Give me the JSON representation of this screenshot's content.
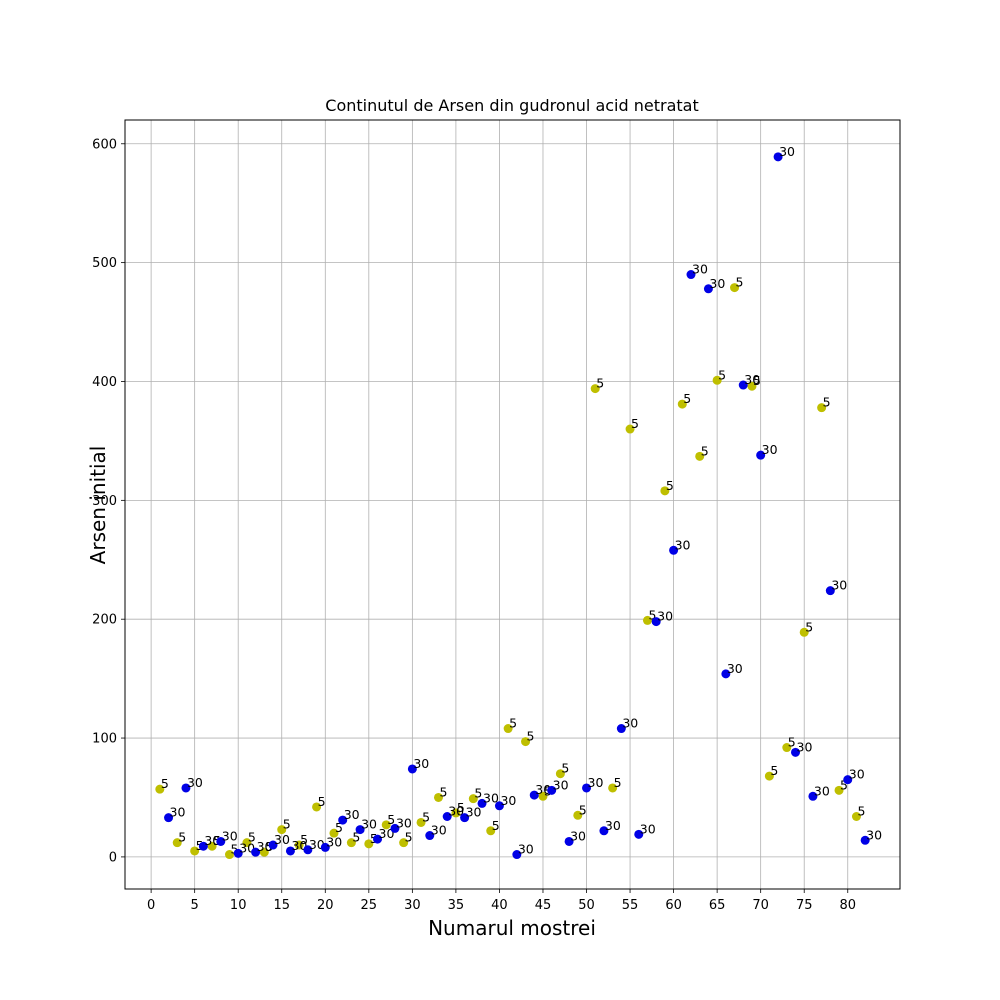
{
  "chart_data": {
    "type": "scatter",
    "title": "Continutul de Arsen din gudronul acid netratat",
    "xlabel": "Numarul mostrei",
    "ylabel": "Arsen initial",
    "xlim": [
      -3,
      86
    ],
    "ylim": [
      -27,
      620
    ],
    "xticks": [
      0,
      5,
      10,
      15,
      20,
      25,
      30,
      35,
      40,
      45,
      50,
      55,
      60,
      65,
      70,
      75,
      80
    ],
    "yticks": [
      0,
      100,
      200,
      300,
      400,
      500,
      600
    ],
    "grid": true,
    "series": [
      {
        "color": "#bfbf00",
        "points": [
          {
            "x": 1,
            "y": 57,
            "label": "5"
          },
          {
            "x": 3,
            "y": 12,
            "label": "5"
          },
          {
            "x": 5,
            "y": 5,
            "label": "5"
          },
          {
            "x": 7,
            "y": 9,
            "label": "5"
          },
          {
            "x": 9,
            "y": 2,
            "label": "5"
          },
          {
            "x": 11,
            "y": 12,
            "label": "5"
          },
          {
            "x": 13,
            "y": 4,
            "label": "5"
          },
          {
            "x": 15,
            "y": 23,
            "label": "5"
          },
          {
            "x": 17,
            "y": 10,
            "label": "5"
          },
          {
            "x": 19,
            "y": 42,
            "label": "5"
          },
          {
            "x": 21,
            "y": 20,
            "label": "5"
          },
          {
            "x": 23,
            "y": 12,
            "label": "5"
          },
          {
            "x": 25,
            "y": 11,
            "label": "5"
          },
          {
            "x": 27,
            "y": 27,
            "label": "5"
          },
          {
            "x": 29,
            "y": 12,
            "label": "5"
          },
          {
            "x": 31,
            "y": 29,
            "label": "5"
          },
          {
            "x": 33,
            "y": 50,
            "label": "5"
          },
          {
            "x": 35,
            "y": 37,
            "label": "5"
          },
          {
            "x": 37,
            "y": 49,
            "label": "5"
          },
          {
            "x": 39,
            "y": 22,
            "label": "5"
          },
          {
            "x": 41,
            "y": 108,
            "label": "5"
          },
          {
            "x": 43,
            "y": 97,
            "label": "5"
          },
          {
            "x": 45,
            "y": 51,
            "label": "5"
          },
          {
            "x": 47,
            "y": 70,
            "label": "5"
          },
          {
            "x": 49,
            "y": 35,
            "label": "5"
          },
          {
            "x": 51,
            "y": 394,
            "label": "5"
          },
          {
            "x": 53,
            "y": 58,
            "label": "5"
          },
          {
            "x": 55,
            "y": 360,
            "label": "5"
          },
          {
            "x": 57,
            "y": 199,
            "label": "5"
          },
          {
            "x": 59,
            "y": 308,
            "label": "5"
          },
          {
            "x": 61,
            "y": 381,
            "label": "5"
          },
          {
            "x": 63,
            "y": 337,
            "label": "5"
          },
          {
            "x": 65,
            "y": 401,
            "label": "5"
          },
          {
            "x": 67,
            "y": 479,
            "label": "5"
          },
          {
            "x": 69,
            "y": 396,
            "label": "5"
          },
          {
            "x": 71,
            "y": 68,
            "label": "5"
          },
          {
            "x": 73,
            "y": 92,
            "label": "5"
          },
          {
            "x": 75,
            "y": 189,
            "label": "5"
          },
          {
            "x": 77,
            "y": 378,
            "label": "5"
          },
          {
            "x": 79,
            "y": 56,
            "label": "5"
          },
          {
            "x": 81,
            "y": 34,
            "label": "5"
          }
        ]
      },
      {
        "color": "#0000e6",
        "points": [
          {
            "x": 2,
            "y": 33,
            "label": "30"
          },
          {
            "x": 4,
            "y": 58,
            "label": "30"
          },
          {
            "x": 6,
            "y": 9,
            "label": "30"
          },
          {
            "x": 8,
            "y": 13,
            "label": "30"
          },
          {
            "x": 10,
            "y": 3,
            "label": "30"
          },
          {
            "x": 12,
            "y": 4,
            "label": "30"
          },
          {
            "x": 14,
            "y": 10,
            "label": "30"
          },
          {
            "x": 16,
            "y": 5,
            "label": "30"
          },
          {
            "x": 18,
            "y": 6,
            "label": "30"
          },
          {
            "x": 20,
            "y": 8,
            "label": "30"
          },
          {
            "x": 22,
            "y": 31,
            "label": "30"
          },
          {
            "x": 24,
            "y": 23,
            "label": "30"
          },
          {
            "x": 26,
            "y": 15,
            "label": "30"
          },
          {
            "x": 28,
            "y": 24,
            "label": "30"
          },
          {
            "x": 30,
            "y": 74,
            "label": "30"
          },
          {
            "x": 32,
            "y": 18,
            "label": "30"
          },
          {
            "x": 34,
            "y": 34,
            "label": "30"
          },
          {
            "x": 36,
            "y": 33,
            "label": "30"
          },
          {
            "x": 38,
            "y": 45,
            "label": "30"
          },
          {
            "x": 40,
            "y": 43,
            "label": "30"
          },
          {
            "x": 42,
            "y": 2,
            "label": "30"
          },
          {
            "x": 44,
            "y": 52,
            "label": "30"
          },
          {
            "x": 46,
            "y": 56,
            "label": "30"
          },
          {
            "x": 48,
            "y": 13,
            "label": "30"
          },
          {
            "x": 50,
            "y": 58,
            "label": "30"
          },
          {
            "x": 52,
            "y": 22,
            "label": "30"
          },
          {
            "x": 54,
            "y": 108,
            "label": "30"
          },
          {
            "x": 56,
            "y": 19,
            "label": "30"
          },
          {
            "x": 58,
            "y": 198,
            "label": "30"
          },
          {
            "x": 60,
            "y": 258,
            "label": "30"
          },
          {
            "x": 62,
            "y": 490,
            "label": "30"
          },
          {
            "x": 64,
            "y": 478,
            "label": "30"
          },
          {
            "x": 66,
            "y": 154,
            "label": "30"
          },
          {
            "x": 68,
            "y": 397,
            "label": "30"
          },
          {
            "x": 70,
            "y": 338,
            "label": "30"
          },
          {
            "x": 72,
            "y": 589,
            "label": "30"
          },
          {
            "x": 74,
            "y": 88,
            "label": "30"
          },
          {
            "x": 76,
            "y": 51,
            "label": "30"
          },
          {
            "x": 78,
            "y": 224,
            "label": "30"
          },
          {
            "x": 80,
            "y": 65,
            "label": "30"
          },
          {
            "x": 82,
            "y": 14,
            "label": "30"
          }
        ]
      }
    ]
  }
}
